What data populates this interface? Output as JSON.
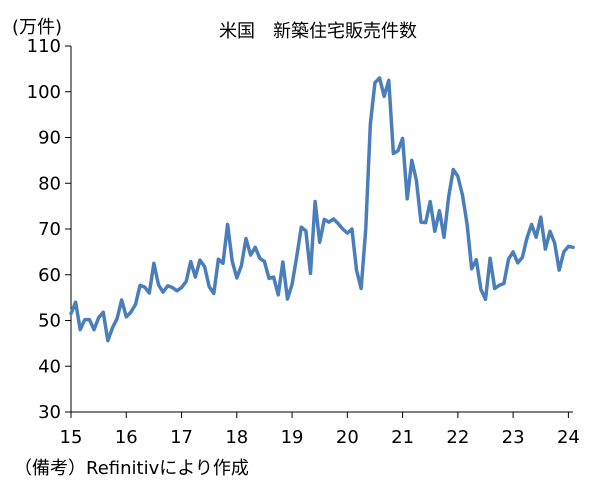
{
  "chart_data": {
    "type": "line",
    "title": "米国　新築住宅販売件数",
    "unit_label": "(万件)",
    "source_note": "（備考）Refinitivにより作成",
    "xlabel": "",
    "ylabel": "",
    "ylim": [
      30,
      110
    ],
    "yticks": [
      "30",
      "40",
      "50",
      "60",
      "70",
      "80",
      "90",
      "100",
      "110"
    ],
    "x_range": [
      "2015-01",
      "2024-02"
    ],
    "xticks": [
      {
        "label": "15",
        "date": "2015-01"
      },
      {
        "label": "16",
        "date": "2016-01"
      },
      {
        "label": "17",
        "date": "2017-01"
      },
      {
        "label": "18",
        "date": "2018-01"
      },
      {
        "label": "19",
        "date": "2019-01"
      },
      {
        "label": "20",
        "date": "2020-01"
      },
      {
        "label": "21",
        "date": "2021-01"
      },
      {
        "label": "22",
        "date": "2022-01"
      },
      {
        "label": "23",
        "date": "2023-01"
      },
      {
        "label": "24",
        "date": "2024-01"
      }
    ],
    "grid": false,
    "legend": "none",
    "series": [
      {
        "color": "#4a7ebb",
        "start": "2015-01",
        "frequency": "monthly",
        "values": [
          51.5,
          54.0,
          48.0,
          50.2,
          50.2,
          48.0,
          50.6,
          51.8,
          45.6,
          48.4,
          50.4,
          54.5,
          50.8,
          51.8,
          53.5,
          57.7,
          57.3,
          56.0,
          62.5,
          57.8,
          56.2,
          57.6,
          57.2,
          56.5,
          57.2,
          58.5,
          62.9,
          59.5,
          63.2,
          61.8,
          57.4,
          55.9,
          63.4,
          62.5,
          71.0,
          63.0,
          59.3,
          62.0,
          67.9,
          64.3,
          66.0,
          63.6,
          62.9,
          59.2,
          59.5,
          55.6,
          62.8,
          54.7,
          57.9,
          63.9,
          70.4,
          69.6,
          60.3,
          76.0,
          67.1,
          72.1,
          71.5,
          72.2,
          71.2,
          70.0,
          69.1,
          70.0,
          61.0,
          57.0,
          70.0,
          93.0,
          102.0,
          103.0,
          99.0,
          102.5,
          86.5,
          87.1,
          89.8,
          76.6,
          85.0,
          80.6,
          71.5,
          71.4,
          76.0,
          69.5,
          74.0,
          68.2,
          77.0,
          83.0,
          81.5,
          77.4,
          71.1,
          61.3,
          63.3,
          56.8,
          54.6,
          63.6,
          57.0,
          57.7,
          58.1,
          63.4,
          65.0,
          62.6,
          63.8,
          68.0,
          71.0,
          68.2,
          72.6,
          65.6,
          69.5,
          67.0,
          61.0,
          65.0,
          66.2,
          66.0
        ]
      }
    ]
  }
}
